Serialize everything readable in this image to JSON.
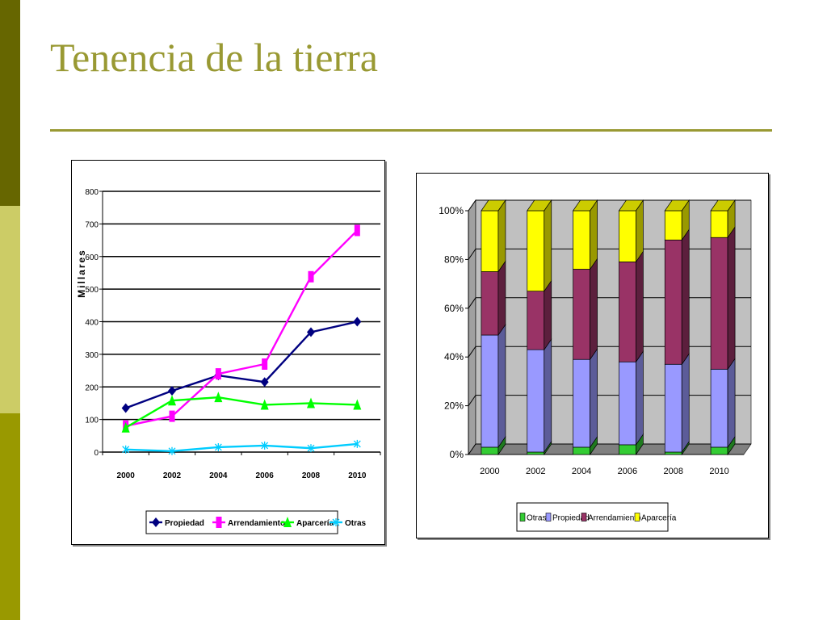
{
  "slide": {
    "title": "Tenencia de la tierra",
    "colors": {
      "title": "#999933",
      "sidebar_dark": "#666600",
      "sidebar_light": "#cccc66",
      "sidebar_mid": "#999900",
      "rule": "#999933"
    }
  },
  "chart_data": [
    {
      "type": "line",
      "ylabel": "Millares",
      "xlabel": "",
      "title": "",
      "x": [
        "2000",
        "2002",
        "2004",
        "2006",
        "2008",
        "2010"
      ],
      "ylim": [
        0,
        800
      ],
      "yticks": [
        0,
        100,
        200,
        300,
        400,
        500,
        600,
        700,
        800
      ],
      "grid": true,
      "legend_position": "bottom",
      "series": [
        {
          "name": "Propiedad",
          "values": [
            135,
            188,
            235,
            215,
            368,
            400
          ],
          "color": "#000080",
          "marker": "diamond"
        },
        {
          "name": "Arrendamiento",
          "values": [
            80,
            110,
            240,
            270,
            538,
            680
          ],
          "color": "#ff00ff",
          "marker": "square"
        },
        {
          "name": "Aparcería",
          "values": [
            75,
            158,
            168,
            145,
            150,
            145
          ],
          "color": "#00ff00",
          "marker": "triangle"
        },
        {
          "name": "Otras",
          "values": [
            8,
            3,
            15,
            20,
            12,
            25
          ],
          "color": "#00ccff",
          "marker": "x"
        }
      ]
    },
    {
      "type": "bar",
      "stacked": "percent",
      "title": "",
      "xlabel": "",
      "ylabel": "",
      "categories": [
        "2000",
        "2002",
        "2004",
        "2006",
        "2008",
        "2010"
      ],
      "ylim": [
        0,
        100
      ],
      "yticks": [
        "0%",
        "20%",
        "40%",
        "60%",
        "80%",
        "100%"
      ],
      "grid": true,
      "legend_position": "bottom",
      "series": [
        {
          "name": "Otras",
          "values": [
            3,
            1,
            3,
            4,
            1,
            3
          ],
          "color": "#33cc33"
        },
        {
          "name": "Propiedad",
          "values": [
            46,
            42,
            36,
            34,
            36,
            32
          ],
          "color": "#9999ff"
        },
        {
          "name": "Arrendamiento",
          "values": [
            26,
            24,
            37,
            41,
            51,
            54
          ],
          "color": "#993366"
        },
        {
          "name": "Aparcería",
          "values": [
            25,
            33,
            24,
            21,
            12,
            11
          ],
          "color": "#ffff00"
        }
      ]
    }
  ]
}
